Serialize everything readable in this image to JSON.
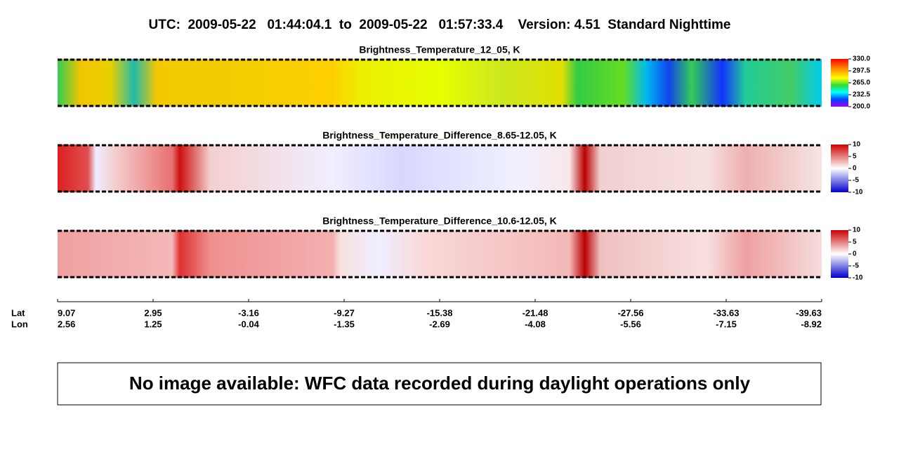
{
  "header": {
    "title": "UTC:  2009-05-22   01:44:04.1  to  2009-05-22   01:57:33.4    Version: 4.51  Standard Nighttime"
  },
  "panels": [
    {
      "title": "Brightness_Temperature_12_05, K",
      "colorbar_ticks": [
        {
          "value": 330,
          "label": "330.0"
        },
        {
          "value": 297.5,
          "label": "297.5"
        },
        {
          "value": 265,
          "label": "265.0"
        },
        {
          "value": 232.5,
          "label": "232.5"
        },
        {
          "value": 200,
          "label": "200.0"
        }
      ]
    },
    {
      "title": "Brightness_Temperature_Difference_8.65-12.05, K",
      "colorbar_ticks": [
        10,
        5,
        0,
        -5,
        -10
      ]
    },
    {
      "title": "Brightness_Temperature_Difference_10.6-12.05, K",
      "colorbar_ticks": [
        10,
        5,
        0,
        -5,
        -10
      ]
    }
  ],
  "axis": {
    "lat_label": "Lat",
    "lon_label": "Lon",
    "lat": [
      9.07,
      2.95,
      -3.16,
      -9.27,
      -15.38,
      -21.48,
      -27.56,
      -33.63,
      -39.63
    ],
    "lon": [
      2.56,
      1.25,
      -0.04,
      -1.35,
      -2.69,
      -4.08,
      -5.56,
      -7.15,
      -8.92
    ]
  },
  "message": "No image available: WFC data recorded during daylight operations only"
}
